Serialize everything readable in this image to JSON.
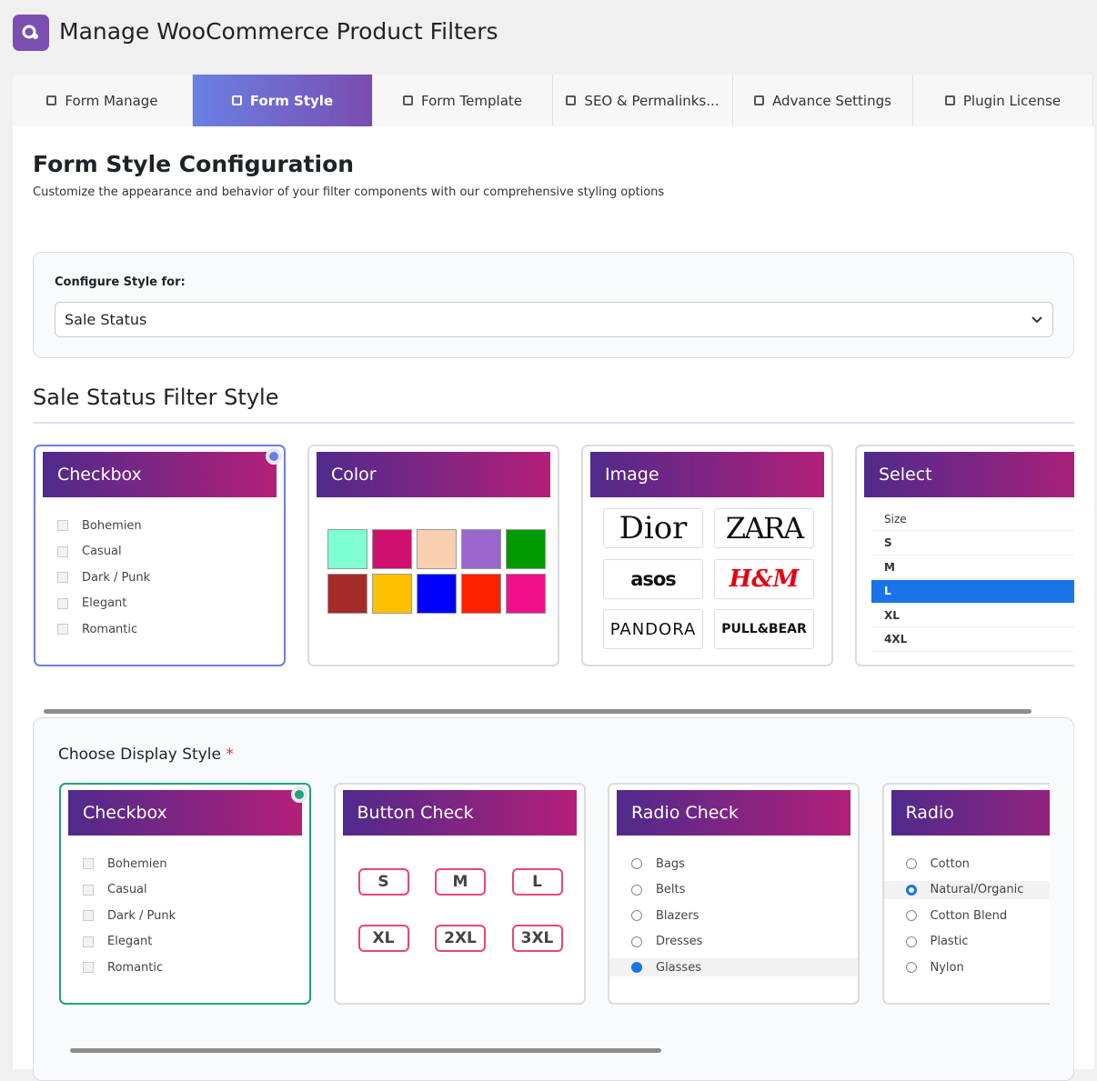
{
  "header": {
    "title": "Manage WooCommerce Product Filters"
  },
  "tabs": {
    "items": [
      "Form Manage",
      "Form Style",
      "Form Template",
      "SEO & Permalinks...",
      "Advance Settings",
      "Plugin License"
    ],
    "active": 1
  },
  "section": {
    "title": "Form Style Configuration",
    "subtitle": "Customize the appearance and behavior of your filter components with our comprehensive styling options"
  },
  "config": {
    "label": "Configure Style for:",
    "selected": "Sale Status"
  },
  "filter_style": {
    "title": "Sale Status Filter Style",
    "cards": [
      {
        "title": "Checkbox",
        "selected": true,
        "options": [
          "Bohemien",
          "Casual",
          "Dark / Punk",
          "Elegant",
          "Romantic"
        ]
      },
      {
        "title": "Color",
        "colors": [
          "#7fffd4",
          "#d0106e",
          "#f9cfb0",
          "#9966cc",
          "#009900",
          "#a52a2a",
          "#ffc000",
          "#0000ff",
          "#ff2000",
          "#f0108a"
        ]
      },
      {
        "title": "Image",
        "brands": [
          "Dior",
          "ZARA",
          "asos",
          "H&M",
          "PANDORA",
          "PULL&BEAR"
        ]
      },
      {
        "title": "Select",
        "select_options": [
          "Size",
          "S",
          "M",
          "L",
          "XL",
          "4XL"
        ],
        "checked": 3
      }
    ]
  },
  "display": {
    "label": "Choose Display Style",
    "required": "*",
    "cards": [
      {
        "title": "Checkbox",
        "selected": true,
        "options": [
          "Bohemien",
          "Casual",
          "Dark / Punk",
          "Elegant",
          "Romantic"
        ]
      },
      {
        "title": "Button Check",
        "buttons": [
          "S",
          "M",
          "L",
          "XL",
          "2XL",
          "3XL"
        ]
      },
      {
        "title": "Radio Check",
        "radio_checks": [
          "Bags",
          "Belts",
          "Blazers",
          "Dresses",
          "Glasses"
        ],
        "checked": 4
      },
      {
        "title": "Radio",
        "radios": [
          "Cotton",
          "Natural/Organic",
          "Cotton Blend",
          "Plastic",
          "Nylon"
        ],
        "checked": 1
      }
    ]
  }
}
